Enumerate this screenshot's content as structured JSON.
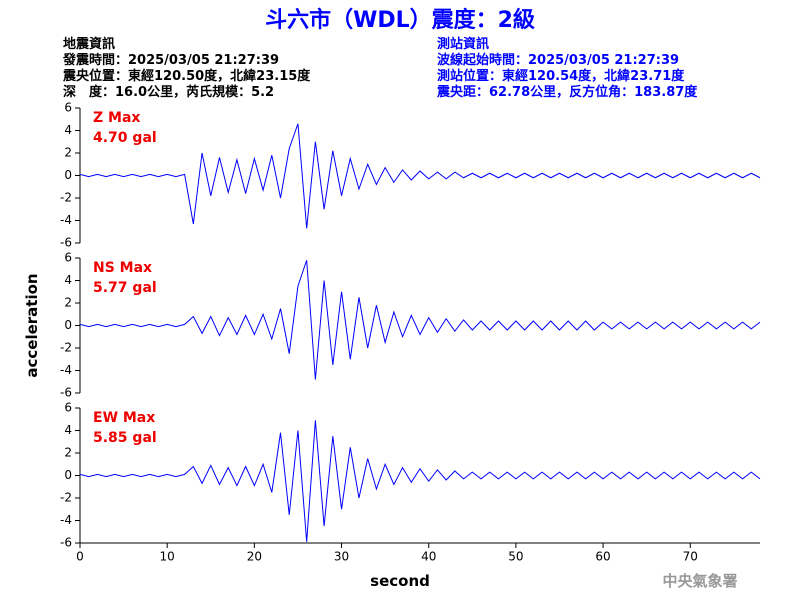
{
  "header": {
    "title": "斗六市（WDL）震度：2級",
    "left": [
      "地震資訊",
      "發震時間：2025/03/05 21:27:39",
      "震央位置：東經120.50度，北緯23.15度",
      "深　度：16.0公里，芮氏規模：5.2"
    ],
    "right": [
      "測站資訊",
      "波線起始時間：2025/03/05 21:27:39",
      "測站位置：東經120.54度，北緯23.71度",
      "震央距：62.78公里，反方位角：183.87度"
    ],
    "footer": "中央氣象署"
  },
  "chart_data": [
    {
      "type": "line",
      "annotation": "4.70 gal",
      "xlim": [
        0,
        78
      ],
      "ylim": [
        -6,
        6
      ],
      "yticks": [
        -6,
        -4,
        -2,
        0,
        2,
        4,
        6
      ],
      "x": [
        0,
        1,
        2,
        3,
        4,
        5,
        6,
        7,
        8,
        9,
        10,
        11,
        12,
        13,
        14,
        15,
        16,
        17,
        18,
        19,
        20,
        21,
        22,
        23,
        24,
        25,
        26,
        27,
        28,
        29,
        30,
        31,
        32,
        33,
        34,
        35,
        36,
        37,
        38,
        39,
        40,
        41,
        42,
        43,
        44,
        45,
        46,
        47,
        48,
        49,
        50,
        51,
        52,
        53,
        54,
        55,
        56,
        57,
        58,
        59,
        60,
        61,
        62,
        63,
        64,
        65,
        66,
        67,
        68,
        69,
        70,
        71,
        72,
        73,
        74,
        75,
        76,
        77,
        78
      ],
      "series": [
        {
          "name": "Z Max",
          "color": "#0000ff",
          "values": [
            0.1,
            -0.1,
            0.1,
            -0.1,
            0.1,
            -0.1,
            0.1,
            -0.1,
            0.1,
            -0.1,
            0.1,
            -0.1,
            0.1,
            -4.3,
            2.0,
            -1.8,
            1.6,
            -1.5,
            1.4,
            -1.6,
            1.5,
            -1.3,
            1.8,
            -2.0,
            2.4,
            4.6,
            -4.7,
            3.0,
            -3.0,
            2.2,
            -1.8,
            1.5,
            -1.2,
            1.0,
            -0.8,
            0.7,
            -0.6,
            0.5,
            -0.4,
            0.4,
            -0.3,
            0.3,
            -0.3,
            0.3,
            -0.2,
            0.2,
            -0.2,
            0.2,
            -0.2,
            0.2,
            -0.2,
            0.2,
            -0.2,
            0.2,
            -0.2,
            0.2,
            -0.2,
            0.2,
            -0.2,
            0.2,
            -0.2,
            0.2,
            -0.2,
            0.2,
            -0.2,
            0.2,
            -0.2,
            0.2,
            -0.2,
            0.2,
            -0.2,
            0.2,
            -0.2,
            0.2,
            -0.2,
            0.2,
            -0.2,
            0.2,
            -0.2
          ]
        }
      ]
    },
    {
      "type": "line",
      "annotation": "5.77 gal",
      "ylabel": "acceleration",
      "xlim": [
        0,
        78
      ],
      "ylim": [
        -6,
        6
      ],
      "yticks": [
        -6,
        -4,
        -2,
        0,
        2,
        4,
        6
      ],
      "x": [
        0,
        1,
        2,
        3,
        4,
        5,
        6,
        7,
        8,
        9,
        10,
        11,
        12,
        13,
        14,
        15,
        16,
        17,
        18,
        19,
        20,
        21,
        22,
        23,
        24,
        25,
        26,
        27,
        28,
        29,
        30,
        31,
        32,
        33,
        34,
        35,
        36,
        37,
        38,
        39,
        40,
        41,
        42,
        43,
        44,
        45,
        46,
        47,
        48,
        49,
        50,
        51,
        52,
        53,
        54,
        55,
        56,
        57,
        58,
        59,
        60,
        61,
        62,
        63,
        64,
        65,
        66,
        67,
        68,
        69,
        70,
        71,
        72,
        73,
        74,
        75,
        76,
        77,
        78
      ],
      "series": [
        {
          "name": "NS Max",
          "color": "#0000ff",
          "values": [
            0.1,
            -0.1,
            0.1,
            -0.1,
            0.1,
            -0.1,
            0.1,
            -0.1,
            0.1,
            -0.1,
            0.1,
            -0.1,
            0.1,
            0.8,
            -0.7,
            0.8,
            -0.9,
            0.7,
            -0.8,
            0.9,
            -0.8,
            1.0,
            -1.2,
            1.5,
            -2.5,
            3.5,
            5.8,
            -4.8,
            4.0,
            -3.5,
            3.0,
            -3.0,
            2.5,
            -2.0,
            1.8,
            -1.5,
            1.2,
            -1.0,
            0.9,
            -0.8,
            0.7,
            -0.6,
            0.6,
            -0.5,
            0.5,
            -0.4,
            0.4,
            -0.4,
            0.4,
            -0.4,
            0.4,
            -0.4,
            0.4,
            -0.4,
            0.4,
            -0.4,
            0.4,
            -0.4,
            0.4,
            -0.4,
            0.3,
            -0.3,
            0.3,
            -0.3,
            0.3,
            -0.3,
            0.3,
            -0.3,
            0.3,
            -0.3,
            0.3,
            -0.3,
            0.3,
            -0.3,
            0.3,
            -0.3,
            0.3,
            -0.3,
            0.3
          ]
        }
      ]
    },
    {
      "type": "line",
      "annotation": "5.85 gal",
      "xlabel": "second",
      "xlim": [
        0,
        78
      ],
      "xticks": [
        0,
        10,
        20,
        30,
        40,
        50,
        60,
        70
      ],
      "ylim": [
        -6,
        6
      ],
      "yticks": [
        -6,
        -4,
        -2,
        0,
        2,
        4,
        6
      ],
      "x": [
        0,
        1,
        2,
        3,
        4,
        5,
        6,
        7,
        8,
        9,
        10,
        11,
        12,
        13,
        14,
        15,
        16,
        17,
        18,
        19,
        20,
        21,
        22,
        23,
        24,
        25,
        26,
        27,
        28,
        29,
        30,
        31,
        32,
        33,
        34,
        35,
        36,
        37,
        38,
        39,
        40,
        41,
        42,
        43,
        44,
        45,
        46,
        47,
        48,
        49,
        50,
        51,
        52,
        53,
        54,
        55,
        56,
        57,
        58,
        59,
        60,
        61,
        62,
        63,
        64,
        65,
        66,
        67,
        68,
        69,
        70,
        71,
        72,
        73,
        74,
        75,
        76,
        77,
        78
      ],
      "series": [
        {
          "name": "EW Max",
          "color": "#0000ff",
          "values": [
            0.1,
            -0.1,
            0.1,
            -0.1,
            0.1,
            -0.1,
            0.1,
            -0.1,
            0.1,
            -0.1,
            0.1,
            -0.1,
            0.1,
            0.8,
            -0.7,
            0.9,
            -0.8,
            0.7,
            -0.9,
            0.8,
            -0.9,
            1.0,
            -1.5,
            3.8,
            -3.5,
            4.0,
            -5.9,
            4.9,
            -4.5,
            3.5,
            -3.0,
            2.5,
            -2.0,
            1.5,
            -1.2,
            1.0,
            -0.8,
            0.7,
            -0.6,
            0.6,
            -0.5,
            0.5,
            -0.4,
            0.4,
            -0.3,
            0.3,
            -0.3,
            0.3,
            -0.3,
            0.3,
            -0.3,
            0.3,
            -0.3,
            0.3,
            -0.3,
            0.3,
            -0.3,
            0.3,
            -0.3,
            0.3,
            -0.3,
            0.3,
            -0.3,
            0.3,
            -0.3,
            0.3,
            -0.3,
            0.3,
            -0.3,
            0.3,
            -0.3,
            0.3,
            -0.3,
            0.3,
            -0.3,
            0.3,
            -0.3,
            0.3,
            -0.3
          ]
        }
      ]
    }
  ]
}
